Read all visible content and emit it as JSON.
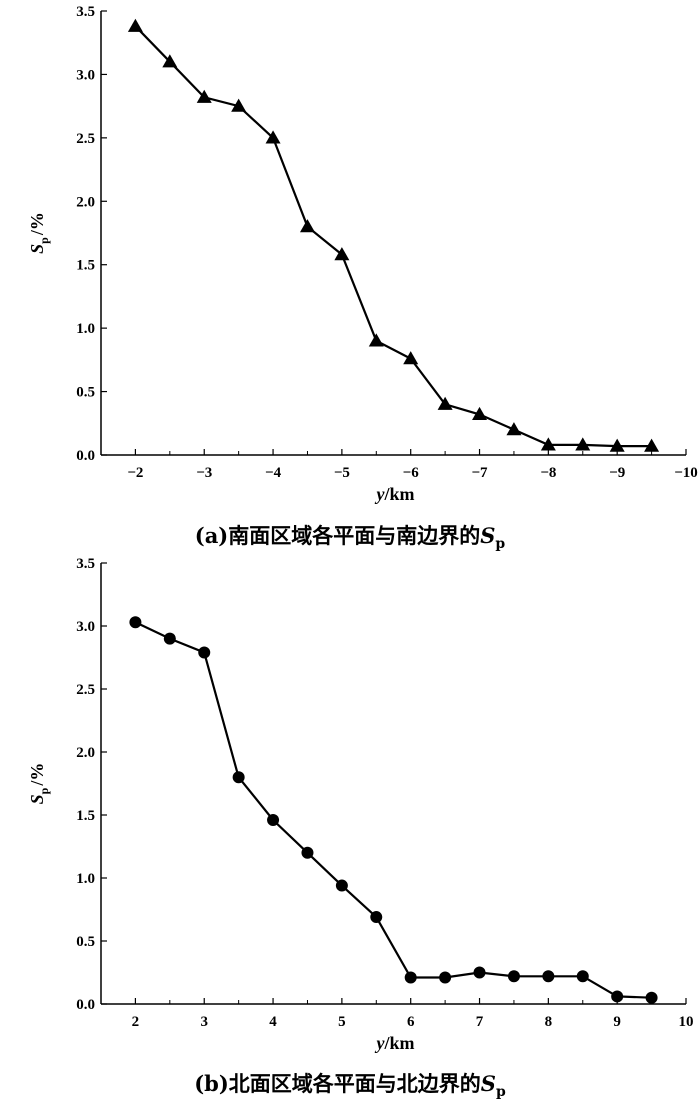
{
  "chart_data": [
    {
      "type": "line",
      "caption_prefix": "(a)",
      "caption_text": "南面区域各平面与南边界的",
      "caption_symbol": "S",
      "caption_sub": "p",
      "xlabel_var": "y",
      "xlabel_unit": "/km",
      "ylabel_var": "S",
      "ylabel_sub": "p",
      "ylabel_unit": "/%",
      "xlim": [
        -1.5,
        -10
      ],
      "ylim": [
        0,
        3.5
      ],
      "xticks": [
        -2,
        -3,
        -4,
        -5,
        -6,
        -7,
        -8,
        -9,
        -10
      ],
      "xtick_labels": [
        "−2",
        "−3",
        "−4",
        "−5",
        "−6",
        "−7",
        "−8",
        "−9",
        "−10"
      ],
      "yticks": [
        0,
        0.5,
        1.0,
        1.5,
        2.0,
        2.5,
        3.0,
        3.5
      ],
      "ytick_labels": [
        "0.0",
        "0.5",
        "1.0",
        "1.5",
        "2.0",
        "2.5",
        "3.0",
        "3.5"
      ],
      "marker": "triangle",
      "series": [
        {
          "x": [
            -2,
            -2.5,
            -3,
            -3.5,
            -4,
            -4.5,
            -5,
            -5.5,
            -6,
            -6.5,
            -7,
            -7.5,
            -8,
            -8.5,
            -9,
            -9.5
          ],
          "y": [
            3.38,
            3.1,
            2.82,
            2.75,
            2.5,
            1.8,
            1.58,
            0.9,
            0.76,
            0.4,
            0.32,
            0.2,
            0.08,
            0.08,
            0.07,
            0.07
          ]
        }
      ],
      "grid": false
    },
    {
      "type": "line",
      "caption_prefix": "(b)",
      "caption_text": "北面区域各平面与北边界的",
      "caption_symbol": "S",
      "caption_sub": "p",
      "xlabel_var": "y",
      "xlabel_unit": "/km",
      "ylabel_var": "S",
      "ylabel_sub": "p",
      "ylabel_unit": "/%",
      "xlim": [
        1.5,
        10
      ],
      "ylim": [
        0,
        3.5
      ],
      "xticks": [
        2,
        3,
        4,
        5,
        6,
        7,
        8,
        9,
        10
      ],
      "xtick_labels": [
        "2",
        "3",
        "4",
        "5",
        "6",
        "7",
        "8",
        "9",
        "10"
      ],
      "yticks": [
        0,
        0.5,
        1.0,
        1.5,
        2.0,
        2.5,
        3.0,
        3.5
      ],
      "ytick_labels": [
        "0.0",
        "0.5",
        "1.0",
        "1.5",
        "2.0",
        "2.5",
        "3.0",
        "3.5"
      ],
      "marker": "circle",
      "series": [
        {
          "x": [
            2,
            2.5,
            3,
            3.5,
            4,
            4.5,
            5,
            5.5,
            6,
            6.5,
            7,
            7.5,
            8,
            8.5,
            9,
            9.5
          ],
          "y": [
            3.03,
            2.9,
            2.79,
            1.8,
            1.46,
            1.2,
            0.94,
            0.69,
            0.21,
            0.21,
            0.25,
            0.22,
            0.22,
            0.22,
            0.06,
            0.05
          ]
        }
      ],
      "grid": false
    }
  ]
}
